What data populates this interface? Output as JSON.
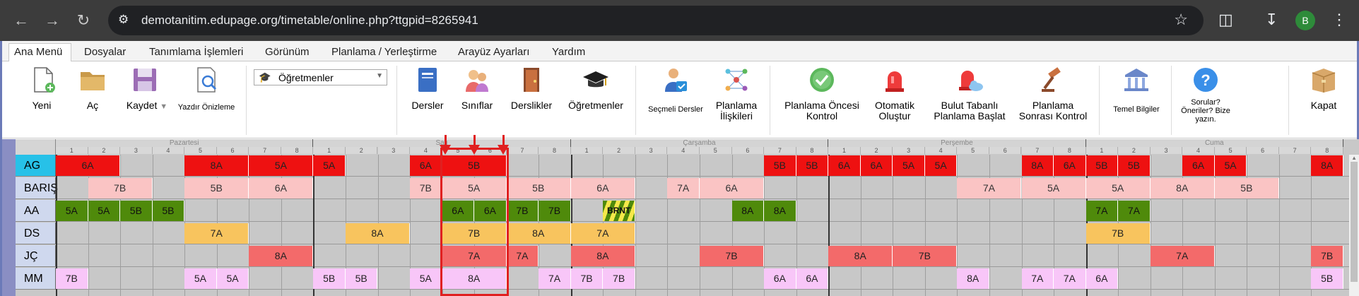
{
  "browser": {
    "url": "demotanitim.edupage.org/timetable/online.php?ttgpid=8265941",
    "profile_initial": "B"
  },
  "menu": {
    "items": [
      "Ana Menü",
      "Dosyalar",
      "Tanımlama İşlemleri",
      "Görünüm",
      "Planlama / Yerleştirme",
      "Arayüz Ayarları",
      "Yardım"
    ],
    "active": "Ana Menü"
  },
  "ribbon": {
    "new": "Yeni",
    "open": "Aç",
    "save": "Kaydet",
    "print_preview": "Yazdır Önizleme",
    "view_select": "Öğretmenler",
    "subjects": "Dersler",
    "classes": "Sınıflar",
    "classrooms": "Derslikler",
    "teachers": "Öğretmenler",
    "elective": "Seçmeli Dersler",
    "planning_relations_1": "Planlama",
    "planning_relations_2": "İlişkileri",
    "pre_check_1": "Planlama Öncesi",
    "pre_check_2": "Kontrol",
    "auto_1": "Otomatik",
    "auto_2": "Oluştur",
    "cloud_1": "Bulut Tabanlı",
    "cloud_2": "Planlama Başlat",
    "post_check_1": "Planlama",
    "post_check_2": "Sonrası Kontrol",
    "basic_info": "Temel Bilgiler",
    "questions_1": "Sorular?",
    "questions_2": "Öneriler? Bize",
    "questions_3": "yazın.",
    "close": "Kapat"
  },
  "timetable": {
    "days": [
      "Pazartesi",
      "Salı",
      "Çarşamba",
      "Perşembe",
      "Cuma"
    ],
    "periods": [
      "1",
      "2",
      "3",
      "4",
      "5",
      "6",
      "7",
      "8"
    ],
    "teachers": [
      "AG",
      "BARIŞ",
      "AA",
      "DS",
      "JÇ",
      "MM"
    ],
    "selected_teacher": "AG",
    "colors": {
      "red": "#ee1111",
      "pink": "#fac4c4",
      "green": "#4f8a0b",
      "orange": "#f8c45e",
      "salmon": "#f36a6a",
      "lilac": "#f8c6f8",
      "selected_row": "#27c1e8",
      "highlight": "#e02020"
    },
    "lessons": [
      {
        "row": 0,
        "day": 0,
        "p": 0,
        "span": 2,
        "text": "6A",
        "color": "red"
      },
      {
        "row": 0,
        "day": 0,
        "p": 4,
        "span": 2,
        "text": "8A",
        "color": "red"
      },
      {
        "row": 0,
        "day": 0,
        "p": 6,
        "span": 2,
        "text": "5A",
        "color": "red"
      },
      {
        "row": 0,
        "day": 1,
        "p": 0,
        "span": 1,
        "text": "5A",
        "color": "red"
      },
      {
        "row": 0,
        "day": 1,
        "p": 3,
        "span": 1,
        "text": "6A",
        "color": "red"
      },
      {
        "row": 0,
        "day": 1,
        "p": 4,
        "span": 2,
        "text": "5B",
        "color": "red"
      },
      {
        "row": 0,
        "day": 2,
        "p": 6,
        "span": 1,
        "text": "5B",
        "color": "red"
      },
      {
        "row": 0,
        "day": 2,
        "p": 7,
        "span": 1,
        "text": "5B",
        "color": "red"
      },
      {
        "row": 0,
        "day": 3,
        "p": 0,
        "span": 1,
        "text": "6A",
        "color": "red"
      },
      {
        "row": 0,
        "day": 3,
        "p": 1,
        "span": 1,
        "text": "6A",
        "color": "red"
      },
      {
        "row": 0,
        "day": 3,
        "p": 2,
        "span": 1,
        "text": "5A",
        "color": "red"
      },
      {
        "row": 0,
        "day": 3,
        "p": 3,
        "span": 1,
        "text": "5A",
        "color": "red"
      },
      {
        "row": 0,
        "day": 3,
        "p": 6,
        "span": 1,
        "text": "8A",
        "color": "red"
      },
      {
        "row": 0,
        "day": 3,
        "p": 7,
        "span": 1,
        "text": "6A",
        "color": "red"
      },
      {
        "row": 0,
        "day": 4,
        "p": 0,
        "span": 1,
        "text": "5B",
        "color": "red"
      },
      {
        "row": 0,
        "day": 4,
        "p": 1,
        "span": 1,
        "text": "5B",
        "color": "red"
      },
      {
        "row": 0,
        "day": 4,
        "p": 3,
        "span": 1,
        "text": "6A",
        "color": "red"
      },
      {
        "row": 0,
        "day": 4,
        "p": 4,
        "span": 1,
        "text": "5A",
        "color": "red"
      },
      {
        "row": 0,
        "day": 4,
        "p": 7,
        "span": 1,
        "text": "8A",
        "color": "red"
      },
      {
        "row": 1,
        "day": 0,
        "p": 1,
        "span": 2,
        "text": "7B",
        "color": "pink"
      },
      {
        "row": 1,
        "day": 0,
        "p": 4,
        "span": 2,
        "text": "5B",
        "color": "pink"
      },
      {
        "row": 1,
        "day": 0,
        "p": 6,
        "span": 2,
        "text": "6A",
        "color": "pink"
      },
      {
        "row": 1,
        "day": 1,
        "p": 3,
        "span": 1,
        "text": "7B",
        "color": "pink"
      },
      {
        "row": 1,
        "day": 1,
        "p": 4,
        "span": 2,
        "text": "5A",
        "color": "pink"
      },
      {
        "row": 1,
        "day": 1,
        "p": 6,
        "span": 2,
        "text": "5B",
        "color": "pink"
      },
      {
        "row": 1,
        "day": 2,
        "p": 0,
        "span": 2,
        "text": "6A",
        "color": "pink"
      },
      {
        "row": 1,
        "day": 2,
        "p": 3,
        "span": 1,
        "text": "7A",
        "color": "pink"
      },
      {
        "row": 1,
        "day": 2,
        "p": 4,
        "span": 2,
        "text": "6A",
        "color": "pink"
      },
      {
        "row": 1,
        "day": 3,
        "p": 4,
        "span": 2,
        "text": "7A",
        "color": "pink"
      },
      {
        "row": 1,
        "day": 3,
        "p": 6,
        "span": 2,
        "text": "5A",
        "color": "pink"
      },
      {
        "row": 1,
        "day": 4,
        "p": 0,
        "span": 2,
        "text": "5A",
        "color": "pink"
      },
      {
        "row": 1,
        "day": 4,
        "p": 2,
        "span": 2,
        "text": "8A",
        "color": "pink"
      },
      {
        "row": 1,
        "day": 4,
        "p": 4,
        "span": 2,
        "text": "5B",
        "color": "pink"
      },
      {
        "row": 2,
        "day": 0,
        "p": 0,
        "span": 1,
        "text": "5A",
        "color": "green"
      },
      {
        "row": 2,
        "day": 0,
        "p": 1,
        "span": 1,
        "text": "5A",
        "color": "green"
      },
      {
        "row": 2,
        "day": 0,
        "p": 2,
        "span": 1,
        "text": "5B",
        "color": "green"
      },
      {
        "row": 2,
        "day": 0,
        "p": 3,
        "span": 1,
        "text": "5B",
        "color": "green"
      },
      {
        "row": 2,
        "day": 1,
        "p": 4,
        "span": 1,
        "text": "6A",
        "color": "green"
      },
      {
        "row": 2,
        "day": 1,
        "p": 5,
        "span": 1,
        "text": "6A",
        "color": "green"
      },
      {
        "row": 2,
        "day": 1,
        "p": 6,
        "span": 1,
        "text": "7B",
        "color": "green"
      },
      {
        "row": 2,
        "day": 1,
        "p": 7,
        "span": 1,
        "text": "7B",
        "color": "green"
      },
      {
        "row": 2,
        "day": 2,
        "p": 1,
        "span": 1,
        "text": "BRNT",
        "color": "stripe"
      },
      {
        "row": 2,
        "day": 2,
        "p": 5,
        "span": 1,
        "text": "8A",
        "color": "green"
      },
      {
        "row": 2,
        "day": 2,
        "p": 6,
        "span": 1,
        "text": "8A",
        "color": "green"
      },
      {
        "row": 2,
        "day": 4,
        "p": 0,
        "span": 1,
        "text": "7A",
        "color": "green"
      },
      {
        "row": 2,
        "day": 4,
        "p": 1,
        "span": 1,
        "text": "7A",
        "color": "green"
      },
      {
        "row": 3,
        "day": 0,
        "p": 4,
        "span": 2,
        "text": "7A",
        "color": "orange"
      },
      {
        "row": 3,
        "day": 1,
        "p": 1,
        "span": 2,
        "text": "8A",
        "color": "orange"
      },
      {
        "row": 3,
        "day": 1,
        "p": 4,
        "span": 2,
        "text": "7B",
        "color": "orange"
      },
      {
        "row": 3,
        "day": 1,
        "p": 6,
        "span": 2,
        "text": "8A",
        "color": "orange"
      },
      {
        "row": 3,
        "day": 2,
        "p": 0,
        "span": 2,
        "text": "7A",
        "color": "orange"
      },
      {
        "row": 3,
        "day": 4,
        "p": 0,
        "span": 2,
        "text": "7B",
        "color": "orange"
      },
      {
        "row": 4,
        "day": 0,
        "p": 6,
        "span": 2,
        "text": "8A",
        "color": "salmon"
      },
      {
        "row": 4,
        "day": 1,
        "p": 4,
        "span": 2,
        "text": "7A",
        "color": "salmon"
      },
      {
        "row": 4,
        "day": 1,
        "p": 6,
        "span": 1,
        "text": "7A",
        "color": "salmon"
      },
      {
        "row": 4,
        "day": 2,
        "p": 0,
        "span": 2,
        "text": "8A",
        "color": "salmon"
      },
      {
        "row": 4,
        "day": 2,
        "p": 4,
        "span": 2,
        "text": "7B",
        "color": "salmon"
      },
      {
        "row": 4,
        "day": 3,
        "p": 0,
        "span": 2,
        "text": "8A",
        "color": "salmon"
      },
      {
        "row": 4,
        "day": 3,
        "p": 2,
        "span": 2,
        "text": "7B",
        "color": "salmon"
      },
      {
        "row": 4,
        "day": 4,
        "p": 2,
        "span": 2,
        "text": "7A",
        "color": "salmon"
      },
      {
        "row": 4,
        "day": 4,
        "p": 7,
        "span": 1,
        "text": "7B",
        "color": "salmon"
      },
      {
        "row": 5,
        "day": 0,
        "p": 0,
        "span": 1,
        "text": "7B",
        "color": "lilac"
      },
      {
        "row": 5,
        "day": 0,
        "p": 4,
        "span": 1,
        "text": "5A",
        "color": "lilac"
      },
      {
        "row": 5,
        "day": 0,
        "p": 5,
        "span": 1,
        "text": "5A",
        "color": "lilac"
      },
      {
        "row": 5,
        "day": 1,
        "p": 0,
        "span": 1,
        "text": "5B",
        "color": "lilac"
      },
      {
        "row": 5,
        "day": 1,
        "p": 1,
        "span": 1,
        "text": "5B",
        "color": "lilac"
      },
      {
        "row": 5,
        "day": 1,
        "p": 3,
        "span": 1,
        "text": "5A",
        "color": "lilac"
      },
      {
        "row": 5,
        "day": 1,
        "p": 4,
        "span": 2,
        "text": "8A",
        "color": "lilac"
      },
      {
        "row": 5,
        "day": 1,
        "p": 7,
        "span": 1,
        "text": "7A",
        "color": "lilac"
      },
      {
        "row": 5,
        "day": 2,
        "p": 0,
        "span": 1,
        "text": "7B",
        "color": "lilac"
      },
      {
        "row": 5,
        "day": 2,
        "p": 1,
        "span": 1,
        "text": "7B",
        "color": "lilac"
      },
      {
        "row": 5,
        "day": 2,
        "p": 6,
        "span": 1,
        "text": "6A",
        "color": "lilac"
      },
      {
        "row": 5,
        "day": 2,
        "p": 7,
        "span": 1,
        "text": "6A",
        "color": "lilac"
      },
      {
        "row": 5,
        "day": 3,
        "p": 4,
        "span": 1,
        "text": "8A",
        "color": "lilac"
      },
      {
        "row": 5,
        "day": 3,
        "p": 6,
        "span": 1,
        "text": "7A",
        "color": "lilac"
      },
      {
        "row": 5,
        "day": 3,
        "p": 7,
        "span": 1,
        "text": "7A",
        "color": "lilac"
      },
      {
        "row": 5,
        "day": 4,
        "p": 0,
        "span": 1,
        "text": "6A",
        "color": "lilac"
      },
      {
        "row": 5,
        "day": 4,
        "p": 7,
        "span": 1,
        "text": "5B",
        "color": "lilac"
      }
    ]
  }
}
